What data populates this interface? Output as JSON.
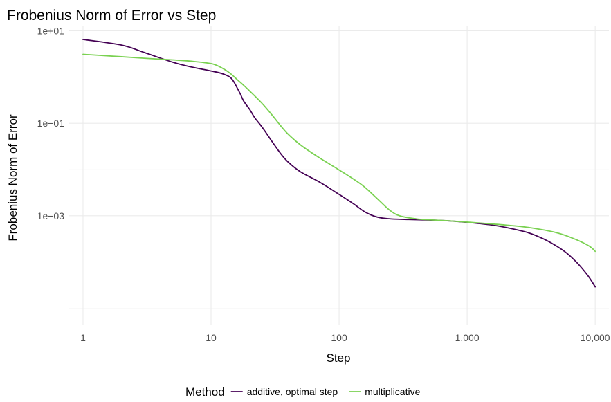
{
  "chart_data": {
    "type": "line",
    "title": "Frobenius Norm of Error vs Step",
    "xlabel": "Step",
    "ylabel": "Frobenius Norm of Error",
    "x_scale": "log10",
    "y_scale": "log10",
    "xlim": [
      0.78,
      12800
    ],
    "ylim": [
      4.3e-06,
      12.5
    ],
    "x_ticks": [
      {
        "value": 1,
        "label": "1"
      },
      {
        "value": 10,
        "label": "10"
      },
      {
        "value": 100,
        "label": "100"
      },
      {
        "value": 1000,
        "label": "1,000"
      },
      {
        "value": 10000,
        "label": "10,000"
      }
    ],
    "x_minor": [
      3.162,
      31.62,
      316.2,
      3162
    ],
    "y_ticks": [
      {
        "value": 10,
        "label": "1e+01"
      },
      {
        "value": 0.1,
        "label": "1e−01"
      },
      {
        "value": 0.001,
        "label": "1e−03"
      }
    ],
    "y_minor": [
      1,
      0.01,
      0.0001,
      1e-05
    ],
    "grid": true,
    "legend": {
      "title": "Method",
      "position": "bottom"
    },
    "series": [
      {
        "name": "additive, optimal step",
        "color": "#440154",
        "points": [
          [
            1,
            6.5
          ],
          [
            2,
            4.9
          ],
          [
            3,
            3.4
          ],
          [
            5,
            2.1
          ],
          [
            7,
            1.65
          ],
          [
            10,
            1.35
          ],
          [
            12,
            1.2
          ],
          [
            14,
            1.0
          ],
          [
            15,
            0.8
          ],
          [
            16,
            0.58
          ],
          [
            17,
            0.42
          ],
          [
            18,
            0.3
          ],
          [
            20,
            0.2
          ],
          [
            22,
            0.13
          ],
          [
            25,
            0.083
          ],
          [
            30,
            0.04
          ],
          [
            35,
            0.022
          ],
          [
            40,
            0.0145
          ],
          [
            50,
            0.0089
          ],
          [
            70,
            0.0054
          ],
          [
            100,
            0.0029
          ],
          [
            130,
            0.0018
          ],
          [
            160,
            0.0012
          ],
          [
            200,
            0.00093
          ],
          [
            250,
            0.00086
          ],
          [
            350,
            0.00083
          ],
          [
            500,
            0.00081
          ],
          [
            700,
            0.00078
          ],
          [
            1000,
            0.00072
          ],
          [
            1500,
            0.00064
          ],
          [
            2000,
            0.00056
          ],
          [
            3000,
            0.00043
          ],
          [
            4000,
            0.00031
          ],
          [
            5000,
            0.00022
          ],
          [
            6000,
            0.000155
          ],
          [
            7000,
            0.000105
          ],
          [
            8000,
            7e-05
          ],
          [
            9000,
            4.6e-05
          ],
          [
            10000,
            2.9e-05
          ]
        ]
      },
      {
        "name": "multiplicative",
        "color": "#7AD151",
        "points": [
          [
            1,
            3.1
          ],
          [
            2,
            2.75
          ],
          [
            3,
            2.55
          ],
          [
            5,
            2.35
          ],
          [
            7,
            2.2
          ],
          [
            10,
            1.95
          ],
          [
            12,
            1.6
          ],
          [
            14,
            1.22
          ],
          [
            16,
            0.88
          ],
          [
            18,
            0.66
          ],
          [
            20,
            0.5
          ],
          [
            25,
            0.27
          ],
          [
            30,
            0.15
          ],
          [
            35,
            0.088
          ],
          [
            40,
            0.058
          ],
          [
            50,
            0.034
          ],
          [
            70,
            0.018
          ],
          [
            100,
            0.0098
          ],
          [
            150,
            0.0047
          ],
          [
            200,
            0.0023
          ],
          [
            250,
            0.0013
          ],
          [
            300,
            0.00099
          ],
          [
            400,
            0.00086
          ],
          [
            500,
            0.00082
          ],
          [
            700,
            0.00078
          ],
          [
            1000,
            0.00073
          ],
          [
            1500,
            0.00067
          ],
          [
            2000,
            0.00063
          ],
          [
            3000,
            0.00056
          ],
          [
            5000,
            0.00043
          ],
          [
            7000,
            0.00031
          ],
          [
            9000,
            0.00022
          ],
          [
            10000,
            0.00017
          ]
        ]
      }
    ]
  }
}
